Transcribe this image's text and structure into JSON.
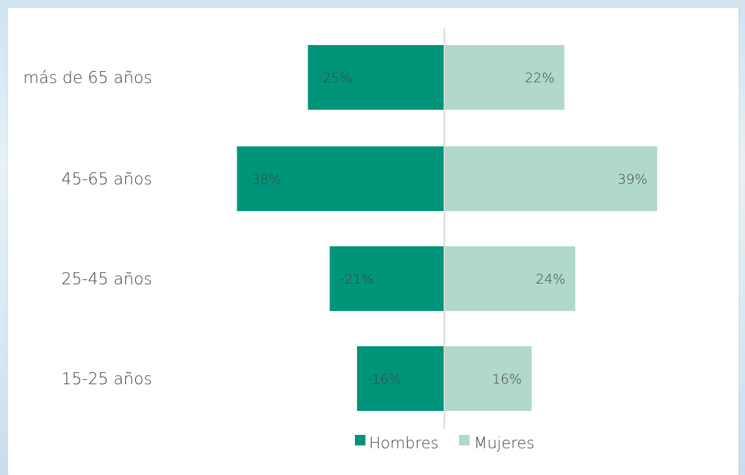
{
  "colors": {
    "hombres": "#00957a",
    "mujeres": "#b0d8cb",
    "axis": "#d9d9d9"
  },
  "chart_data": {
    "type": "bar",
    "orientation": "horizontal",
    "stacked": "diverging",
    "title": "",
    "xlabel": "",
    "ylabel": "",
    "xlim": [
      -40,
      40
    ],
    "categories": [
      "más de 65 años",
      "45-65 años",
      "25-45 años",
      "15-25 años"
    ],
    "series": [
      {
        "name": "Hombres",
        "values": [
          -25,
          -38,
          -21,
          -16
        ],
        "labels": [
          "-25%",
          "-38%",
          "-21%",
          "-16%"
        ]
      },
      {
        "name": "Mujeres",
        "values": [
          22,
          39,
          24,
          16
        ],
        "labels": [
          "22%",
          "39%",
          "24%",
          "16%"
        ]
      }
    ],
    "legend": "bottom",
    "grid": false
  }
}
